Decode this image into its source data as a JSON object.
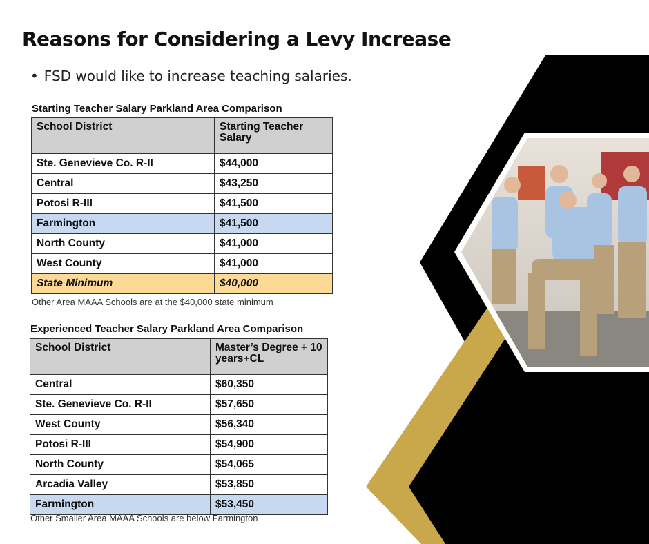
{
  "title": "Reasons for Considering a Levy Increase",
  "bullets": [
    "FSD would like to increase teaching salaries."
  ],
  "tables": [
    {
      "caption": "Starting Teacher Salary Parkland Area Comparison",
      "header": [
        "School District",
        "Starting Teacher Salary"
      ],
      "rows": [
        [
          "Ste. Genevieve Co. R-II",
          "$44,000"
        ],
        [
          "Central",
          "$43,250"
        ],
        [
          "Potosi R-III",
          "$41,500"
        ],
        [
          "Farmington",
          "$41,500"
        ],
        [
          "North County",
          "$41,000"
        ],
        [
          "West County",
          "$41,000"
        ],
        [
          "State Minimum",
          "$40,000"
        ]
      ],
      "note": "Other Area MAAA Schools are at the $40,000 state minimum"
    },
    {
      "caption": "Experienced Teacher Salary Parkland Area Comparison",
      "header": [
        "School District",
        "Master’s Degree + 10 years+CL"
      ],
      "rows": [
        [
          "Central",
          "$60,350"
        ],
        [
          "Ste. Genevieve Co. R-II",
          "$57,650"
        ],
        [
          "West County",
          "$56,340"
        ],
        [
          "Potosi R-III",
          "$54,900"
        ],
        [
          "North County",
          "$54,065"
        ],
        [
          "Arcadia Valley",
          "$53,850"
        ],
        [
          "Farmington",
          "$53,450"
        ]
      ],
      "note": "Other Smaller Area MAAA Schools are below Farmington"
    }
  ]
}
